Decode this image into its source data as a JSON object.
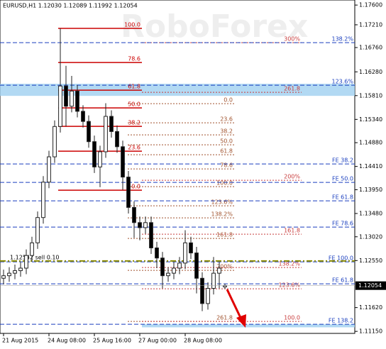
{
  "chart_data": {
    "type": "candlestick",
    "header": "EURUSD,H1  1.12030 1.12089 1.11992 1.12054",
    "watermark": "RoboForex",
    "xlim": [
      -0.625,
      61.875
    ],
    "xticks": [
      {
        "value": 0,
        "label": "21 Aug 2015"
      },
      {
        "value": 8,
        "label": "24 Aug 08:00"
      },
      {
        "value": 16,
        "label": "25 Aug 16:00"
      },
      {
        "value": 24,
        "label": "27 Aug 00:00"
      },
      {
        "value": 32,
        "label": "28 Aug 08:00"
      }
    ],
    "ylim": [
      1.1111,
      1.177
    ],
    "yticks": [
      {
        "value": 1.176,
        "label": "1.17600"
      },
      {
        "value": 1.1721,
        "label": "1.17210"
      },
      {
        "value": 1.1676,
        "label": "1.16760"
      },
      {
        "value": 1.1628,
        "label": "1.16280"
      },
      {
        "value": 1.1581,
        "label": "1.15810"
      },
      {
        "value": 1.1534,
        "label": "1.15340"
      },
      {
        "value": 1.1488,
        "label": "1.14880"
      },
      {
        "value": 1.1441,
        "label": "1.14410"
      },
      {
        "value": 1.1395,
        "label": "1.13950"
      },
      {
        "value": 1.1348,
        "label": "1.13480"
      },
      {
        "value": 1.1302,
        "label": "1.13020"
      },
      {
        "value": 1.1255,
        "label": "1.12550"
      },
      {
        "value": 1.1162,
        "label": "1.11620"
      },
      {
        "value": 1.1115,
        "label": "1.11150"
      }
    ],
    "last_price": 1.12054,
    "up_color": "#ffffff",
    "down_color": "#000000",
    "open": [
      1.122,
      1.1225,
      1.123,
      1.1235,
      1.124,
      1.1265,
      1.129,
      1.134,
      1.141,
      1.146,
      1.152,
      1.16,
      1.156,
      1.159,
      1.155,
      1.153,
      1.149,
      1.144,
      1.147,
      1.154,
      1.151,
      1.148,
      1.142,
      1.136,
      1.133,
      1.132,
      1.133,
      1.128,
      1.126,
      1.1225,
      1.123,
      1.124,
      1.125,
      1.129,
      1.127,
      1.122,
      1.117,
      1.12,
      1.123,
      1.1203
    ],
    "high": [
      1.1237,
      1.1242,
      1.1247,
      1.1252,
      1.1277,
      1.1302,
      1.1352,
      1.1422,
      1.1472,
      1.1532,
      1.1714,
      1.164,
      1.162,
      1.1602,
      1.1562,
      1.1542,
      1.1502,
      1.1482,
      1.1566,
      1.1552,
      1.1522,
      1.1492,
      1.1432,
      1.1372,
      1.1342,
      1.1342,
      1.1342,
      1.1292,
      1.1272,
      1.1242,
      1.1252,
      1.1262,
      1.1315,
      1.1302,
      1.1282,
      1.1232,
      1.1212,
      1.1262,
      1.1252,
      1.12089
    ],
    "low": [
      1.1208,
      1.1213,
      1.1218,
      1.1223,
      1.1228,
      1.1253,
      1.1278,
      1.1328,
      1.1398,
      1.1448,
      1.1508,
      1.152,
      1.1548,
      1.1538,
      1.1518,
      1.1478,
      1.1428,
      1.14,
      1.1458,
      1.1498,
      1.1468,
      1.1395,
      1.1348,
      1.13,
      1.1295,
      1.1308,
      1.1268,
      1.124,
      1.12,
      1.1213,
      1.1218,
      1.1228,
      1.1238,
      1.1258,
      1.119,
      1.1155,
      1.1158,
      1.1188,
      1.12,
      1.11992
    ],
    "close": [
      1.1225,
      1.123,
      1.1235,
      1.124,
      1.1265,
      1.129,
      1.134,
      1.141,
      1.146,
      1.152,
      1.16,
      1.156,
      1.159,
      1.155,
      1.153,
      1.149,
      1.144,
      1.147,
      1.154,
      1.151,
      1.148,
      1.142,
      1.136,
      1.133,
      1.132,
      1.133,
      1.128,
      1.126,
      1.1225,
      1.123,
      1.124,
      1.125,
      1.129,
      1.127,
      1.122,
      1.117,
      1.12,
      1.123,
      1.124,
      1.12054
    ],
    "zones": [
      [
        1.15805,
        1.16044
      ],
      [
        1.1123,
        1.1129
      ]
    ],
    "zone_color": "#9fd0f0",
    "order": {
      "value": 1.12542,
      "label": "1.12542 sell 0.10",
      "color": "#8a8a00"
    },
    "levels": [
      {
        "color": "#cc0000",
        "lines": [
          {
            "value": 1.1714,
            "label": "100.0"
          },
          {
            "value": 1.16464,
            "label": "78.6"
          },
          {
            "value": 1.15917,
            "label": "61.8"
          },
          {
            "value": 1.15567,
            "label": "50.0"
          },
          {
            "value": 1.15202,
            "label": "38.2"
          },
          {
            "value": 1.14711,
            "label": "23.6"
          },
          {
            "value": 1.1394,
            "label": "0.0"
          }
        ]
      },
      {
        "color": "#a0522d",
        "lines": [
          {
            "value": 1.15651,
            "label": "0.0"
          },
          {
            "value": 1.15272,
            "label": "23.6"
          },
          {
            "value": 1.15034,
            "label": "38.2"
          },
          {
            "value": 1.14838,
            "label": "50.0"
          },
          {
            "value": 1.14641,
            "label": "61.8"
          },
          {
            "value": 1.14361,
            "label": "78.6"
          },
          {
            "value": 1.1401,
            "label": "100.0"
          },
          {
            "value": 1.13632,
            "label": "123.6%"
          },
          {
            "value": 1.13393,
            "label": "138.2%"
          },
          {
            "value": 1.12987,
            "label": "161.8"
          },
          {
            "value": 1.12356,
            "label": "200%"
          },
          {
            "value": 1.11346,
            "label": "261.8"
          }
        ]
      },
      {
        "color": "#c83c3c",
        "lines": [
          {
            "value": 1.16857,
            "label": "300%"
          },
          {
            "value": 1.15875,
            "label": "261.8"
          },
          {
            "value": 1.14137,
            "label": "200%"
          },
          {
            "value": 1.13071,
            "label": "161.8"
          },
          {
            "value": 1.12412,
            "label": "138.2%"
          },
          {
            "value": 1.11991,
            "label": "123.6%"
          },
          {
            "value": 1.11346,
            "label": "100.0"
          }
        ]
      },
      {
        "color": "#1a3fbf",
        "lines": [
          {
            "value": 1.16857,
            "label": "138.2%"
          },
          {
            "value": 1.16016,
            "label": "123.6%"
          },
          {
            "value": 1.14459,
            "label": "FE 38.2"
          },
          {
            "value": 1.14095,
            "label": "FE 50.0"
          },
          {
            "value": 1.1373,
            "label": "FE 61.8"
          },
          {
            "value": 1.13211,
            "label": "FE 78.6"
          },
          {
            "value": 1.12524,
            "label": "FE 100.0"
          },
          {
            "value": 1.12089,
            "label": "FE 61.8"
          },
          {
            "value": 1.1129,
            "label": "FE 138.2"
          }
        ]
      }
    ]
  }
}
